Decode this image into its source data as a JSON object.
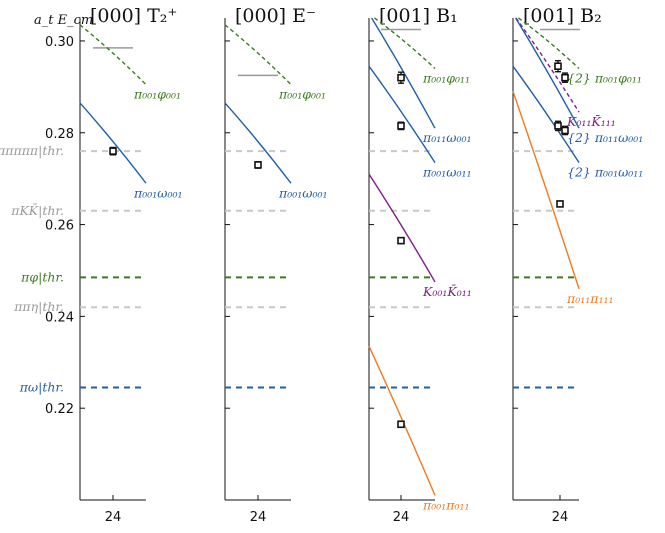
{
  "chart_data": {
    "type": "scatter",
    "ylabel": "a_t E_cm",
    "ylim": [
      0.2,
      0.305
    ],
    "yticks": [
      0.22,
      0.24,
      0.26,
      0.28,
      0.3
    ],
    "ytick_labels": [
      "0.22",
      "0.24",
      "0.26",
      "0.28",
      "0.30"
    ],
    "colors": {
      "blue": "#1f5fa8",
      "green": "#3d7a1e",
      "purple": "#7d1f86",
      "orange": "#f07a1e",
      "grey": "#c8c8c8",
      "darkgrey": "#888888",
      "navy": "#1f5fa8"
    },
    "thresholds": [
      {
        "label": "πππππ|thr.",
        "value": 0.276,
        "color": "grey"
      },
      {
        "label": "πKK̄|thr.",
        "value": 0.263,
        "color": "grey"
      },
      {
        "label": "πφ|thr.",
        "value": 0.2485,
        "color": "green"
      },
      {
        "label": "ππη|thr.",
        "value": 0.242,
        "color": "grey"
      },
      {
        "label": "πω|thr.",
        "value": 0.2245,
        "color": "navy"
      }
    ],
    "panels": [
      {
        "title": "[000] T₂⁺",
        "x_tick_label": "24",
        "points": [
          {
            "y": 0.276,
            "err": 0.0008
          }
        ],
        "grey_bars": [
          0.2985
        ],
        "curves": [
          {
            "label": "π₀₀₁φ₀₀₁",
            "color": "green",
            "dashed": true,
            "y_left": 0.3035,
            "y_right": 0.2905
          },
          {
            "label": "π₀₀₁ω₀₀₁",
            "color": "blue",
            "dashed": false,
            "y_left": 0.2865,
            "y_right": 0.269
          }
        ]
      },
      {
        "title": "[000] E⁻",
        "x_tick_label": "24",
        "points": [
          {
            "y": 0.273,
            "err": 0.0007
          }
        ],
        "grey_bars": [
          0.2925
        ],
        "curves": [
          {
            "label": "π₀₀₁φ₀₀₁",
            "color": "green",
            "dashed": true,
            "y_left": 0.3035,
            "y_right": 0.2905
          },
          {
            "label": "π₀₀₁ω₀₀₁",
            "color": "blue",
            "dashed": false,
            "y_left": 0.2865,
            "y_right": 0.269
          }
        ]
      },
      {
        "title": "[001] B₁",
        "x_tick_label": "24",
        "points": [
          {
            "y": 0.292,
            "err": 0.0012
          },
          {
            "y": 0.2815,
            "err": 0.0008
          },
          {
            "y": 0.2565,
            "err": 0.0006
          },
          {
            "y": 0.2165,
            "err": 0.0006
          }
        ],
        "grey_bars": [
          0.3025
        ],
        "curves": [
          {
            "label": "π₀₀₁φ₀₁₁",
            "color": "green",
            "dashed": true,
            "y_left": 0.306,
            "y_right": 0.294
          },
          {
            "label": "π₀₁₁ω₀₀₁",
            "color": "blue",
            "dashed": false,
            "y_left": 0.306,
            "y_right": 0.281
          },
          {
            "label": "π₀₀₁ω₀₁₁",
            "color": "blue",
            "dashed": false,
            "y_left": 0.2945,
            "y_right": 0.2735
          },
          {
            "label": "K₀₀₁K̄₀₁₁",
            "color": "purple",
            "dashed": false,
            "y_left": 0.271,
            "y_right": 0.2475
          },
          {
            "label": "π₀₀₁π₀₁₁",
            "color": "orange",
            "dashed": false,
            "y_left": 0.2335,
            "y_right": 0.201
          }
        ]
      },
      {
        "title": "[001] B₂",
        "x_tick_label": "24",
        "points": [
          {
            "y": 0.2945,
            "err": 0.0012
          },
          {
            "y": 0.292,
            "err": 0.001
          },
          {
            "y": 0.2815,
            "err": 0.001
          },
          {
            "y": 0.2805,
            "err": 0.0009
          },
          {
            "y": 0.2645,
            "err": 0.0006
          }
        ],
        "grey_bars": [
          0.3025
        ],
        "curves": [
          {
            "label": "{2} π₀₀₁φ₀₁₁",
            "color": "green",
            "dashed": true,
            "y_left": 0.306,
            "y_right": 0.294
          },
          {
            "label": "K₀₁₁K̄₁₁₁",
            "color": "purple",
            "dashed": true,
            "y_left": 0.306,
            "y_right": 0.2845
          },
          {
            "label": "{2} π₀₁₁ω₀₀₁",
            "color": "blue",
            "dashed": false,
            "y_left": 0.306,
            "y_right": 0.281
          },
          {
            "label": "{2} π₀₀₁ω₀₁₁",
            "color": "blue",
            "dashed": false,
            "y_left": 0.2945,
            "y_right": 0.2735
          },
          {
            "label": "π₀₁₁π₁₁₁",
            "color": "orange",
            "dashed": false,
            "y_left": 0.289,
            "y_right": 0.246
          }
        ]
      }
    ]
  }
}
